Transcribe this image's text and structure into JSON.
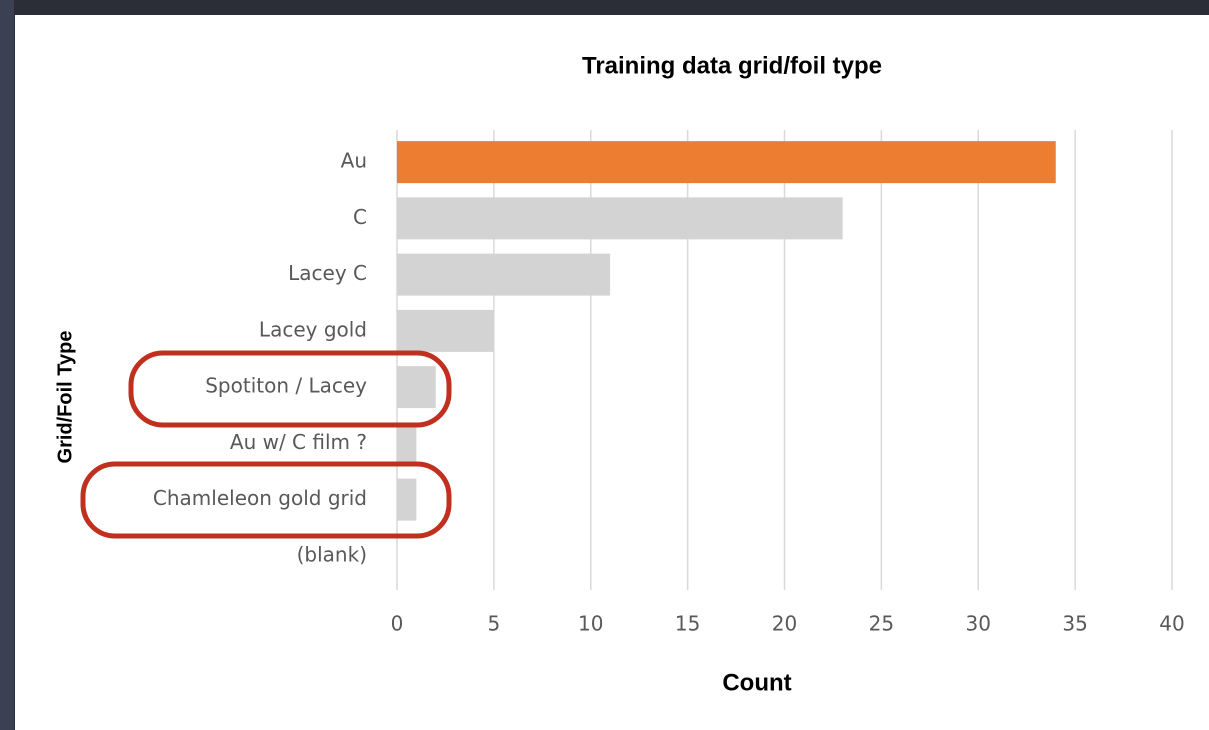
{
  "chart_data": {
    "type": "bar",
    "orientation": "horizontal",
    "title": "Training data grid/foil type",
    "x_label": "Count",
    "y_label": "Grid/Foil Type",
    "categories": [
      "Au",
      "C",
      "Lacey C",
      "Lacey gold",
      "Spotiton / Lacey",
      "Au w/ C film ?",
      "Chamleleon gold grid",
      "(blank)"
    ],
    "values": [
      34,
      23,
      11,
      5,
      2,
      1,
      1,
      null
    ],
    "colors": [
      "#ed7d31",
      "#d3d3d3",
      "#d3d3d3",
      "#d3d3d3",
      "#d3d3d3",
      "#d3d3d3",
      "#d3d3d3",
      "#d3d3d3"
    ],
    "xlim": [
      0,
      40
    ],
    "xticks": [
      0,
      5,
      10,
      15,
      20,
      25,
      30,
      35,
      40
    ],
    "grid": true
  }
}
